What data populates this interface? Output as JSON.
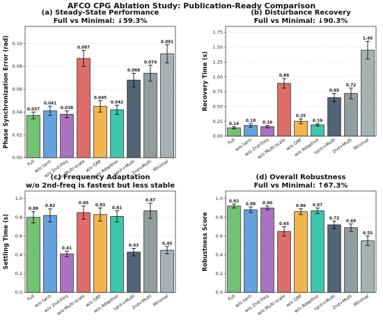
{
  "title": "AFCO CPG Ablation Study: Publication-Ready Comparison",
  "colors": [
    "#5cb85c",
    "#4a90d9",
    "#9b59b6",
    "#d9534f",
    "#f0a830",
    "#1abc9c",
    "#34495e",
    "#7f8c8d",
    "#95a5a6"
  ],
  "chart_data": [
    {
      "type": "bar",
      "title": "(a) Steady-State Performance",
      "subtitle": "Full vs Minimal: ↓59.3%",
      "ylabel": "Phase Synchronization Error (rad)",
      "xlabel": "",
      "categories": [
        "Full",
        "w/o tanh",
        "w/o 2nd-freq",
        "w/o Multi-scale",
        "w/o GRF",
        "w/o Adaptive",
        "tanh+Multi",
        "2nd+Multi",
        "Minimal"
      ],
      "values": [
        0.037,
        0.041,
        0.038,
        0.087,
        0.045,
        0.042,
        0.068,
        0.074,
        0.091
      ],
      "labels": [
        "0.037",
        "0.041",
        "0.038",
        "0.087",
        "0.045",
        "0.042",
        "0.068",
        "0.074",
        "0.091"
      ],
      "errors": [
        0.003,
        0.004,
        0.003,
        0.007,
        0.005,
        0.004,
        0.006,
        0.007,
        0.008
      ],
      "ylim": [
        0,
        0.115
      ],
      "yticks": [
        0.0,
        0.02,
        0.04,
        0.06,
        0.08,
        0.1
      ],
      "ytick_labels": [
        "0.00",
        "0.02",
        "0.04",
        "0.06",
        "0.08",
        "0.10"
      ],
      "grid": true
    },
    {
      "type": "bar",
      "title": "(b) Disturbance Recovery",
      "subtitle": "Full vs Minimal: ↓90.3%",
      "ylabel": "Recovery Time (s)",
      "xlabel": "",
      "categories": [
        "Full",
        "w/o tanh",
        "w/o 2nd-freq",
        "w/o Multi-scale",
        "w/o GRF",
        "w/o Adaptive",
        "tanh+Multi",
        "2nd+Multi",
        "Minimal"
      ],
      "values": [
        0.14,
        0.18,
        0.16,
        0.89,
        0.25,
        0.19,
        0.65,
        0.72,
        1.45
      ],
      "labels": [
        "0.14",
        "0.18",
        "0.16",
        "0.89",
        "0.25",
        "0.19",
        "0.65",
        "0.72",
        "1.45"
      ],
      "errors": [
        0.02,
        0.03,
        0.02,
        0.08,
        0.04,
        0.02,
        0.07,
        0.09,
        0.15
      ],
      "ylim": [
        0,
        1.85
      ],
      "yticks": [
        0.0,
        0.25,
        0.5,
        0.75,
        1.0,
        1.25,
        1.5,
        1.75
      ],
      "ytick_labels": [
        "0.00",
        "0.25",
        "0.50",
        "0.75",
        "1.00",
        "1.25",
        "1.50",
        "1.75"
      ],
      "grid": true
    },
    {
      "type": "bar",
      "title": "(c) Frequency Adaptation",
      "subtitle": "w/o 2nd-freq is fastest but less stable",
      "ylabel": "Settling Time (s)",
      "xlabel": "",
      "categories": [
        "Full",
        "w/o tanh",
        "w/o 2nd-freq",
        "w/o Multi-scale",
        "w/o GRF",
        "w/o Adaptive",
        "tanh+Multi",
        "2nd+Multi",
        "Minimal"
      ],
      "values": [
        0.8,
        0.82,
        0.41,
        0.85,
        0.83,
        0.81,
        0.43,
        0.87,
        0.45
      ],
      "labels": [
        "0.80",
        "0.82",
        "0.41",
        "0.85",
        "0.83",
        "0.81",
        "0.43",
        "0.87",
        "0.45"
      ],
      "errors": [
        0.06,
        0.07,
        0.03,
        0.07,
        0.07,
        0.06,
        0.04,
        0.08,
        0.04
      ],
      "ylim": [
        0,
        1.08
      ],
      "yticks": [
        0.0,
        0.2,
        0.4,
        0.6,
        0.8,
        1.0
      ],
      "ytick_labels": [
        "0.0",
        "0.2",
        "0.4",
        "0.6",
        "0.8",
        "1.0"
      ],
      "grid": true
    },
    {
      "type": "bar",
      "title": "(d) Overall Robustness",
      "subtitle": "Full vs Minimal: ↑67.3%",
      "ylabel": "Robustness Score",
      "xlabel": "",
      "categories": [
        "Full",
        "w/o tanh",
        "w/o 2nd-freq",
        "w/o Multi-scale",
        "w/o GRF",
        "w/o Adaptive",
        "tanh+Multi",
        "2nd+Multi",
        "Minimal"
      ],
      "values": [
        0.92,
        0.88,
        0.9,
        0.65,
        0.86,
        0.87,
        0.72,
        0.69,
        0.55
      ],
      "labels": [
        "0.92",
        "0.88",
        "0.90",
        "0.65",
        "0.86",
        "0.87",
        "0.72",
        "0.69",
        "0.55"
      ],
      "errors": [
        0.02,
        0.03,
        0.02,
        0.05,
        0.03,
        0.03,
        0.04,
        0.04,
        0.05
      ],
      "ylim": [
        0,
        1.08
      ],
      "yticks": [
        0.0,
        0.2,
        0.4,
        0.6,
        0.8,
        1.0
      ],
      "ytick_labels": [
        "0.0",
        "0.2",
        "0.4",
        "0.6",
        "0.8",
        "1.0"
      ],
      "grid": true
    }
  ]
}
